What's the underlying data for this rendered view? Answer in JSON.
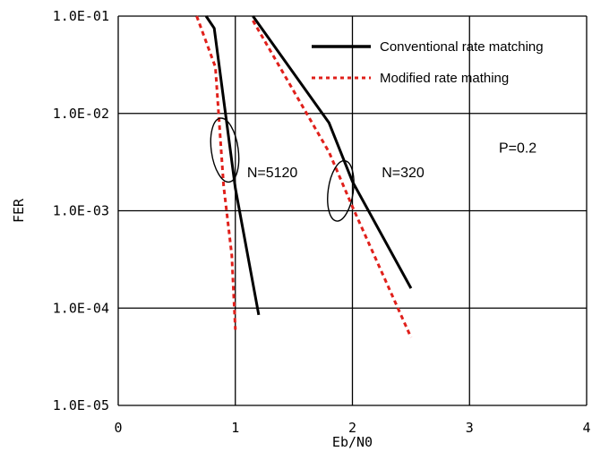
{
  "chart_data": {
    "type": "line",
    "xlabel": "Eb/N0",
    "ylabel": "FER",
    "xlim": [
      0,
      4
    ],
    "ylim": [
      1e-05,
      0.1
    ],
    "yscale": "log",
    "grid": true,
    "x_ticks": [
      "0",
      "1",
      "2",
      "3",
      "4"
    ],
    "y_ticks": [
      "1.0E-01",
      "1.0E-02",
      "1.0E-03",
      "1.0E-04",
      "1.0E-05"
    ],
    "legend_position": "top-right",
    "colors": {
      "conventional": "#000000",
      "modified": "#e0201b"
    },
    "series": [
      {
        "name": "Conventional rate matching",
        "group": "N=5120",
        "style": "solid",
        "points": [
          [
            0.75,
            0.1
          ],
          [
            0.82,
            0.075
          ],
          [
            1.0,
            0.0017
          ],
          [
            1.2,
            8.5e-05
          ]
        ]
      },
      {
        "name": "Modified rate mathing",
        "group": "N=5120",
        "style": "dotted",
        "points": [
          [
            0.67,
            0.1
          ],
          [
            0.83,
            0.03
          ],
          [
            0.9,
            0.0018
          ],
          [
            0.97,
            0.00035
          ],
          [
            1.0,
            6e-05
          ]
        ]
      },
      {
        "name": "Conventional rate matching",
        "group": "N=320",
        "style": "solid",
        "points": [
          [
            1.15,
            0.1
          ],
          [
            1.8,
            0.008
          ],
          [
            2.0,
            0.002
          ],
          [
            2.5,
            0.00016
          ]
        ]
      },
      {
        "name": "Modified rate mathing",
        "group": "N=320",
        "style": "dotted",
        "points": [
          [
            1.15,
            0.09
          ],
          [
            1.8,
            0.004
          ],
          [
            2.0,
            0.0011
          ],
          [
            2.5,
            5e-05
          ]
        ]
      }
    ],
    "annotations": [
      {
        "text": "N=5120",
        "x": 1.1,
        "y": 0.0025
      },
      {
        "text": "N=320",
        "x": 2.25,
        "y": 0.0025
      },
      {
        "text": "P=0.2",
        "x": 3.25,
        "y": 0.0045
      }
    ],
    "legend": [
      "Conventional rate matching",
      "Modified rate mathing"
    ]
  }
}
